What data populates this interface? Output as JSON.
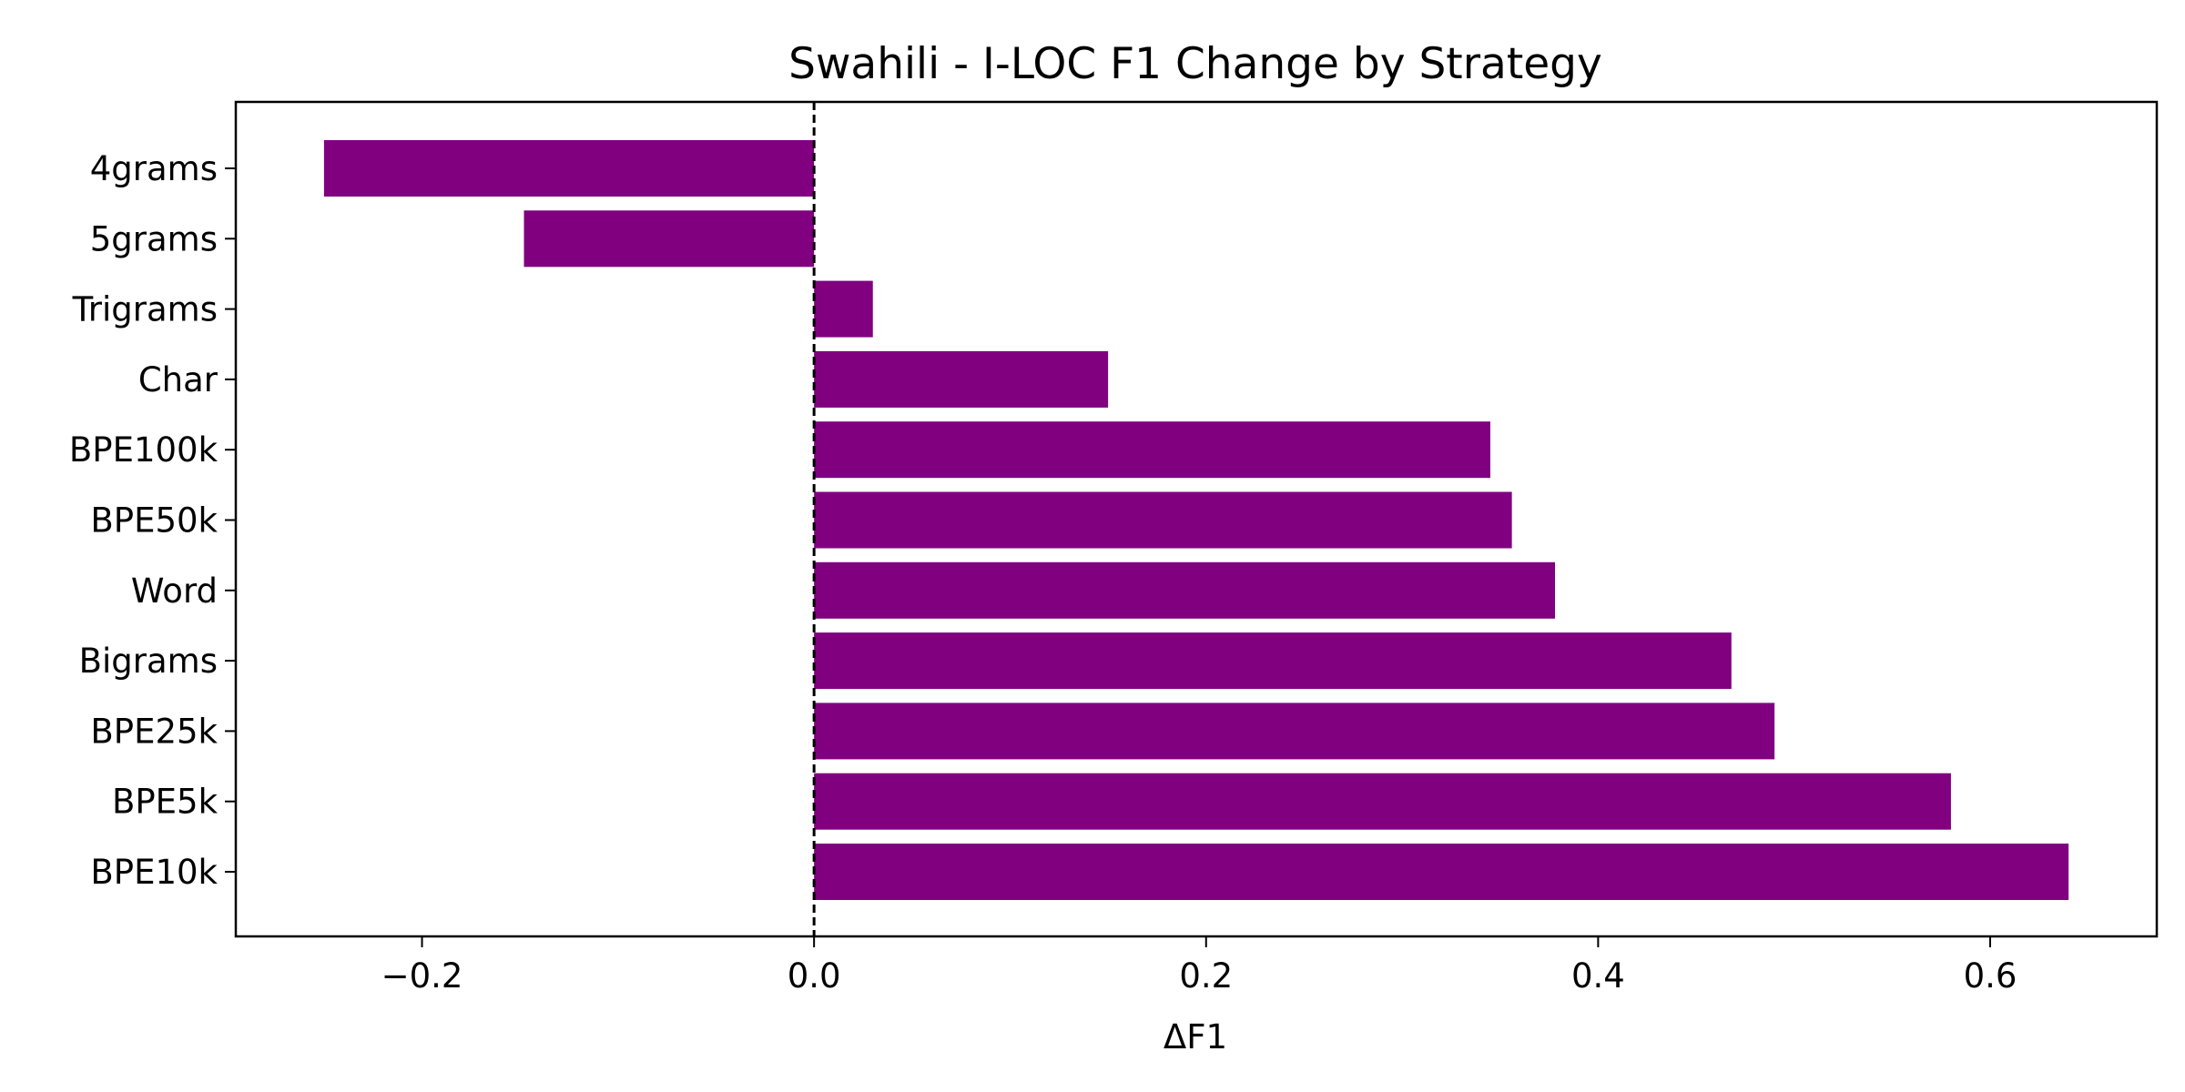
{
  "chart_data": {
    "type": "bar",
    "orientation": "horizontal",
    "title": "Swahili - I-LOC F1 Change by Strategy",
    "xlabel": "ΔF1",
    "ylabel": "",
    "categories": [
      "4grams",
      "5grams",
      "Trigrams",
      "Char",
      "BPE100k",
      "BPE50k",
      "Word",
      "Bigrams",
      "BPE25k",
      "BPE5k",
      "BPE10k"
    ],
    "values": [
      -0.25,
      -0.148,
      0.03,
      0.15,
      0.345,
      0.356,
      0.378,
      0.468,
      0.49,
      0.58,
      0.64
    ],
    "xlim": [
      -0.295,
      0.685
    ],
    "xticks": [
      -0.2,
      0.0,
      0.2,
      0.4,
      0.6
    ],
    "xtick_labels": [
      "−0.2",
      "0.0",
      "0.2",
      "0.4",
      "0.6"
    ],
    "reference_line": 0.0,
    "grid": false,
    "bar_color": "#800080"
  }
}
